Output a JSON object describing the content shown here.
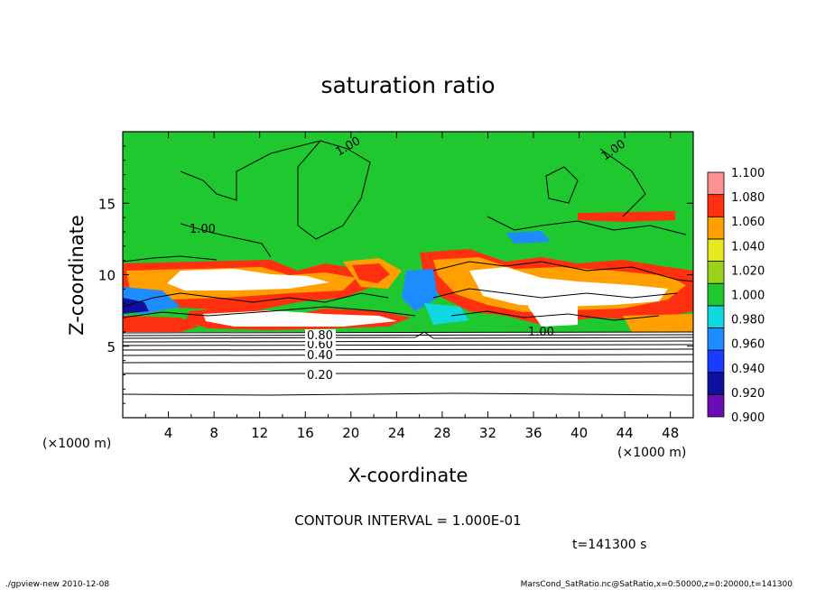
{
  "chart_data": {
    "type": "heatmap",
    "title": "saturation ratio",
    "xlabel": "X-coordinate",
    "ylabel": "Z-coordinate",
    "x_unit": "(×1000 m)",
    "z_unit": "(×1000 m)",
    "xlim": [
      0,
      50
    ],
    "ylim": [
      0,
      20
    ],
    "x_ticks": [
      "4",
      "8",
      "12",
      "16",
      "20",
      "24",
      "28",
      "32",
      "36",
      "40",
      "44",
      "48"
    ],
    "y_ticks": [
      "5",
      "10",
      "15"
    ],
    "colorbar": {
      "levels": [
        "0.900",
        "0.920",
        "0.940",
        "0.960",
        "0.980",
        "1.000",
        "1.020",
        "1.040",
        "1.060",
        "1.080",
        "1.100"
      ],
      "colors": [
        "#6a0db5",
        "#1010a0",
        "#1a3cff",
        "#1e8cff",
        "#10d8e0",
        "#20c830",
        "#9ad21e",
        "#e8e81e",
        "#ffa000",
        "#ff3010",
        "#ff9090"
      ]
    },
    "contour_labels": [
      "1.00",
      "1.00",
      "1.00",
      "1.00",
      "0.20",
      "0.40",
      "0.60",
      "0.80"
    ],
    "contour_interval": "CONTOUR INTERVAL = 1.000E-01",
    "time": "t=141300 s"
  },
  "footer": {
    "left": "./gpview-new  2010-12-08",
    "right": "MarsCond_SatRatio.nc@SatRatio,x=0:50000,z=0:20000,t=141300"
  }
}
